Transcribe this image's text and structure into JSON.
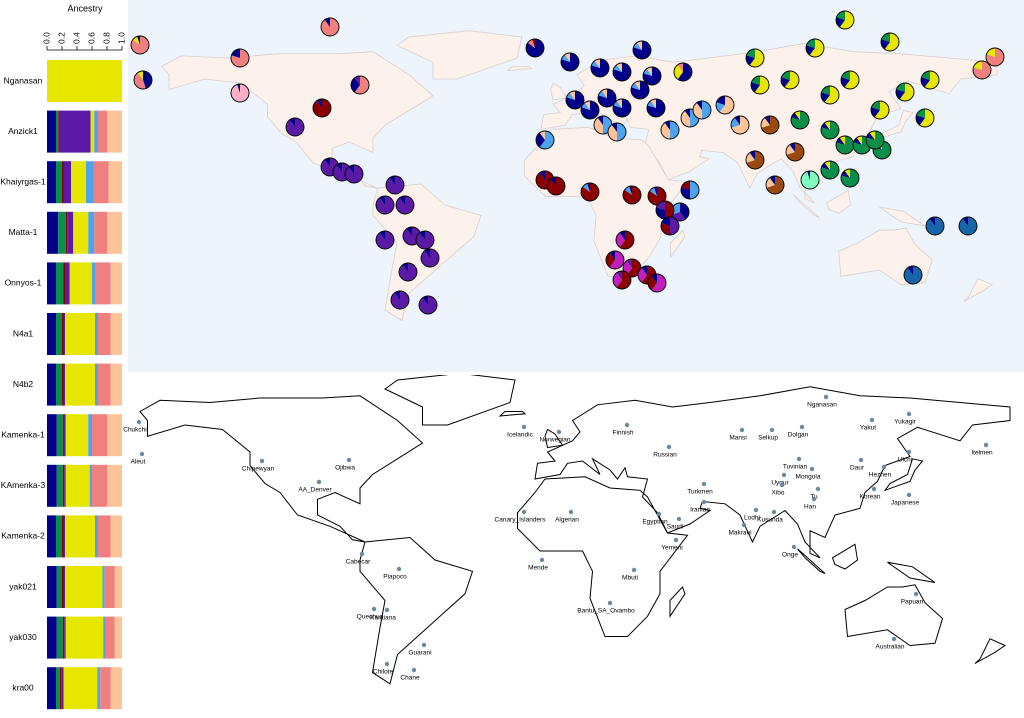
{
  "chart_data": {
    "type": "bar",
    "orientation": "horizontal",
    "stacked": true,
    "x_label": "Ancestry",
    "categories": [
      "Nganasan",
      "Anzick1",
      "Khaiyrgas-1",
      "Matta-1",
      "Onnyos-1",
      "N4a1",
      "N4b2",
      "Kamenka-1",
      "KAmenka-3",
      "Kamenka-2",
      "yak021",
      "yak030",
      "kra00"
    ],
    "xlim": [
      0,
      1
    ],
    "xticks": [
      {
        "value": 0,
        "label": "0.0"
      },
      0.2,
      0.4,
      0.6,
      0.8,
      {
        "value": 1,
        "label": "1.0"
      }
    ],
    "series": [
      {
        "color": "#00008b",
        "values": [
          0,
          0.12,
          0.12,
          0.15,
          0.12,
          0.12,
          0.12,
          0.13,
          0.13,
          0.12,
          0.13,
          0.13,
          0.12
        ]
      },
      {
        "color": "#0a8f4a",
        "values": [
          0,
          0.03,
          0.08,
          0.1,
          0.1,
          0.08,
          0.08,
          0.08,
          0.08,
          0.08,
          0.07,
          0.08,
          0.05
        ]
      },
      {
        "color": "#8b0000",
        "values": [
          0,
          0.01,
          0.02,
          0.02,
          0.02,
          0.02,
          0.02,
          0.01,
          0.02,
          0.02,
          0.02,
          0.02,
          0.02
        ]
      },
      {
        "color": "#5a1aa6",
        "values": [
          0,
          0.42,
          0.1,
          0.08,
          0.06,
          0.02,
          0.02,
          0.03,
          0.02,
          0.02,
          0.02,
          0.02,
          0.03
        ]
      },
      {
        "color": "#e6e600",
        "values": [
          1,
          0.05,
          0.2,
          0.2,
          0.3,
          0.4,
          0.4,
          0.3,
          0.32,
          0.4,
          0.5,
          0.5,
          0.45
        ]
      },
      {
        "color": "#4da3ee",
        "values": [
          0,
          0.05,
          0.1,
          0.08,
          0.05,
          0.04,
          0.04,
          0.05,
          0.03,
          0.04,
          0.03,
          0.03,
          0.04
        ]
      },
      {
        "color": "#f08080",
        "values": [
          0,
          0.12,
          0.2,
          0.17,
          0.2,
          0.17,
          0.17,
          0.2,
          0.2,
          0.17,
          0.13,
          0.12,
          0.14
        ]
      },
      {
        "color": "#ffc39a",
        "values": [
          0,
          0.2,
          0.18,
          0.2,
          0.15,
          0.15,
          0.15,
          0.2,
          0.2,
          0.15,
          0.1,
          0.1,
          0.15
        ]
      }
    ]
  },
  "ancestry_map": {
    "component_colors": [
      "#00008b",
      "#0a8f4a",
      "#8b0000",
      "#5a1aa6",
      "#e6e600",
      "#4da3ee",
      "#f08080",
      "#ffc39a",
      "#9a4a10",
      "#7fffc0",
      "#1565a8",
      "#c020c0",
      "#ffb0c8"
    ],
    "pies": [
      [
        [
          6,
          0.85
        ],
        [
          4,
          0.1
        ],
        [
          0,
          0.05
        ]
      ],
      [
        [
          0,
          0.45
        ],
        [
          6,
          0.45
        ],
        [
          4,
          0.1
        ]
      ],
      [
        [
          6,
          0.9
        ],
        [
          0,
          0.1
        ]
      ],
      [
        [
          6,
          0.8
        ],
        [
          0,
          0.2
        ]
      ],
      [
        [
          12,
          0.95
        ],
        [
          0,
          0.05
        ]
      ],
      [
        [
          2,
          0.9
        ],
        [
          0,
          0.1
        ]
      ],
      [
        [
          6,
          0.6
        ],
        [
          0,
          0.3
        ],
        [
          3,
          0.1
        ]
      ],
      [
        [
          3,
          0.9
        ],
        [
          0,
          0.1
        ]
      ],
      [
        [
          3,
          0.9
        ],
        [
          0,
          0.1
        ]
      ],
      [
        [
          3,
          0.9
        ],
        [
          0,
          0.1
        ]
      ],
      [
        [
          3,
          0.9
        ],
        [
          0,
          0.1
        ]
      ],
      [
        [
          3,
          0.9
        ],
        [
          0,
          0.1
        ]
      ],
      [
        [
          3,
          0.9
        ],
        [
          0,
          0.1
        ]
      ],
      [
        [
          3,
          0.9
        ],
        [
          0,
          0.1
        ]
      ],
      [
        [
          3,
          0.9
        ],
        [
          0,
          0.1
        ]
      ],
      [
        [
          3,
          0.9
        ],
        [
          0,
          0.1
        ]
      ],
      [
        [
          3,
          0.9
        ],
        [
          0,
          0.1
        ]
      ],
      [
        [
          3,
          0.9
        ],
        [
          0,
          0.1
        ]
      ],
      [
        [
          3,
          0.9
        ],
        [
          0,
          0.1
        ]
      ],
      [
        [
          3,
          0.9
        ],
        [
          0,
          0.1
        ]
      ],
      [
        [
          3,
          0.9
        ],
        [
          0,
          0.1
        ]
      ],
      [
        [
          0,
          0.85
        ],
        [
          6,
          0.1
        ],
        [
          2,
          0.05
        ]
      ],
      [
        [
          0,
          0.8
        ],
        [
          5,
          0.1
        ],
        [
          7,
          0.1
        ]
      ],
      [
        [
          0,
          0.8
        ],
        [
          5,
          0.1
        ],
        [
          7,
          0.1
        ]
      ],
      [
        [
          0,
          0.8
        ],
        [
          5,
          0.1
        ],
        [
          7,
          0.1
        ]
      ],
      [
        [
          0,
          0.8
        ],
        [
          5,
          0.1
        ],
        [
          7,
          0.1
        ]
      ],
      [
        [
          0,
          0.8
        ],
        [
          5,
          0.1
        ],
        [
          7,
          0.1
        ]
      ],
      [
        [
          0,
          0.8
        ],
        [
          5,
          0.1
        ],
        [
          7,
          0.1
        ]
      ],
      [
        [
          0,
          0.8
        ],
        [
          5,
          0.1
        ],
        [
          7,
          0.1
        ]
      ],
      [
        [
          0,
          0.8
        ],
        [
          5,
          0.1
        ],
        [
          7,
          0.1
        ]
      ],
      [
        [
          0,
          0.8
        ],
        [
          5,
          0.1
        ],
        [
          7,
          0.1
        ]
      ],
      [
        [
          0,
          0.8
        ],
        [
          5,
          0.1
        ],
        [
          7,
          0.1
        ]
      ],
      [
        [
          0,
          0.8
        ],
        [
          5,
          0.1
        ],
        [
          7,
          0.1
        ]
      ],
      [
        [
          0,
          0.6
        ],
        [
          4,
          0.3
        ],
        [
          6,
          0.1
        ]
      ],
      [
        [
          5,
          0.6
        ],
        [
          0,
          0.3
        ],
        [
          7,
          0.1
        ]
      ],
      [
        [
          5,
          0.5
        ],
        [
          7,
          0.4
        ],
        [
          0,
          0.1
        ]
      ],
      [
        [
          5,
          0.5
        ],
        [
          7,
          0.4
        ],
        [
          0,
          0.1
        ]
      ],
      [
        [
          5,
          0.5
        ],
        [
          7,
          0.4
        ],
        [
          0,
          0.1
        ]
      ],
      [
        [
          5,
          0.5
        ],
        [
          7,
          0.4
        ],
        [
          0,
          0.1
        ]
      ],
      [
        [
          5,
          0.5
        ],
        [
          7,
          0.4
        ],
        [
          0,
          0.1
        ]
      ],
      [
        [
          2,
          0.9
        ],
        [
          0,
          0.1
        ]
      ],
      [
        [
          2,
          0.9
        ],
        [
          0,
          0.1
        ]
      ],
      [
        [
          2,
          0.85
        ],
        [
          5,
          0.1
        ],
        [
          0,
          0.05
        ]
      ],
      [
        [
          2,
          0.85
        ],
        [
          5,
          0.1
        ],
        [
          0,
          0.05
        ]
      ],
      [
        [
          2,
          0.85
        ],
        [
          5,
          0.1
        ],
        [
          0,
          0.05
        ]
      ],
      [
        [
          5,
          0.5
        ],
        [
          0,
          0.3
        ],
        [
          2,
          0.2
        ]
      ],
      [
        [
          0,
          0.4
        ],
        [
          3,
          0.3
        ],
        [
          5,
          0.3
        ]
      ],
      [
        [
          2,
          0.5
        ],
        [
          0,
          0.3
        ],
        [
          3,
          0.2
        ]
      ],
      [
        [
          3,
          0.5
        ],
        [
          2,
          0.3
        ],
        [
          0,
          0.2
        ]
      ],
      [
        [
          2,
          0.6
        ],
        [
          11,
          0.3
        ],
        [
          0,
          0.1
        ]
      ],
      [
        [
          11,
          0.6
        ],
        [
          2,
          0.3
        ],
        [
          0,
          0.1
        ]
      ],
      [
        [
          2,
          0.6
        ],
        [
          11,
          0.3
        ],
        [
          3,
          0.1
        ]
      ],
      [
        [
          2,
          0.6
        ],
        [
          11,
          0.3
        ],
        [
          0,
          0.1
        ]
      ],
      [
        [
          11,
          0.6
        ],
        [
          2,
          0.3
        ],
        [
          0,
          0.1
        ]
      ],
      [
        [
          2,
          0.6
        ],
        [
          11,
          0.3
        ],
        [
          3,
          0.1
        ]
      ],
      [
        [
          7,
          0.6
        ],
        [
          5,
          0.2
        ],
        [
          0,
          0.2
        ]
      ],
      [
        [
          7,
          0.7
        ],
        [
          5,
          0.2
        ],
        [
          0,
          0.1
        ]
      ],
      [
        [
          8,
          0.7
        ],
        [
          7,
          0.2
        ],
        [
          0,
          0.1
        ]
      ],
      [
        [
          8,
          0.7
        ],
        [
          7,
          0.2
        ],
        [
          0,
          0.1
        ]
      ],
      [
        [
          8,
          0.7
        ],
        [
          7,
          0.2
        ],
        [
          0,
          0.1
        ]
      ],
      [
        [
          8,
          0.7
        ],
        [
          7,
          0.2
        ],
        [
          0,
          0.1
        ]
      ],
      [
        [
          1,
          0.8
        ],
        [
          0,
          0.1
        ],
        [
          4,
          0.1
        ]
      ],
      [
        [
          1,
          0.8
        ],
        [
          0,
          0.1
        ],
        [
          4,
          0.1
        ]
      ],
      [
        [
          1,
          0.8
        ],
        [
          0,
          0.1
        ],
        [
          4,
          0.1
        ]
      ],
      [
        [
          1,
          0.8
        ],
        [
          0,
          0.1
        ],
        [
          4,
          0.1
        ]
      ],
      [
        [
          1,
          0.8
        ],
        [
          0,
          0.1
        ],
        [
          4,
          0.1
        ]
      ],
      [
        [
          1,
          0.8
        ],
        [
          0,
          0.1
        ],
        [
          4,
          0.1
        ]
      ],
      [
        [
          1,
          0.8
        ],
        [
          0,
          0.1
        ],
        [
          4,
          0.1
        ]
      ],
      [
        [
          1,
          0.8
        ],
        [
          0,
          0.1
        ],
        [
          4,
          0.1
        ]
      ],
      [
        [
          4,
          0.6
        ],
        [
          0,
          0.2
        ],
        [
          1,
          0.2
        ]
      ],
      [
        [
          4,
          0.6
        ],
        [
          0,
          0.2
        ],
        [
          1,
          0.2
        ]
      ],
      [
        [
          4,
          0.6
        ],
        [
          0,
          0.2
        ],
        [
          1,
          0.2
        ]
      ],
      [
        [
          4,
          0.6
        ],
        [
          0,
          0.2
        ],
        [
          1,
          0.2
        ]
      ],
      [
        [
          4,
          0.6
        ],
        [
          0,
          0.2
        ],
        [
          1,
          0.2
        ]
      ],
      [
        [
          4,
          0.6
        ],
        [
          0,
          0.2
        ],
        [
          1,
          0.2
        ]
      ],
      [
        [
          4,
          0.6
        ],
        [
          0,
          0.2
        ],
        [
          1,
          0.2
        ]
      ],
      [
        [
          4,
          0.6
        ],
        [
          0,
          0.2
        ],
        [
          1,
          0.2
        ]
      ],
      [
        [
          4,
          0.6
        ],
        [
          0,
          0.2
        ],
        [
          1,
          0.2
        ]
      ],
      [
        [
          4,
          0.6
        ],
        [
          0,
          0.2
        ],
        [
          1,
          0.2
        ]
      ],
      [
        [
          4,
          0.6
        ],
        [
          0,
          0.2
        ],
        [
          1,
          0.2
        ]
      ],
      [
        [
          4,
          0.6
        ],
        [
          0,
          0.2
        ],
        [
          1,
          0.2
        ]
      ],
      [
        [
          6,
          0.8
        ],
        [
          4,
          0.2
        ]
      ],
      [
        [
          6,
          0.8
        ],
        [
          4,
          0.2
        ]
      ],
      [
        [
          9,
          0.95
        ],
        [
          0,
          0.05
        ]
      ],
      [
        [
          10,
          0.9
        ],
        [
          0,
          0.1
        ]
      ],
      [
        [
          10,
          0.9
        ],
        [
          0,
          0.1
        ]
      ],
      [
        [
          10,
          0.9
        ],
        [
          0,
          0.1
        ]
      ]
    ]
  },
  "population_labels": [
    "Chukchi",
    "Aleut",
    "Chipewyan",
    "Ojibwa",
    "AA_Denver",
    "Icelandic",
    "Mansi",
    "Selkup",
    "Dolgan",
    "Nganasan",
    "Yakut",
    "Yukagir",
    "Itelmen",
    "Tuvinian",
    "Mongola",
    "Daur",
    "Ulchi",
    "Uygur",
    "Xibo",
    "Tu",
    "Han",
    "Hezhen",
    "Korean",
    "Japanese",
    "Kusunda",
    "Lodhi",
    "Makrani",
    "Saudi",
    "Egyptian",
    "Algerian",
    "Canary_Islanders",
    "Yemeni",
    "Mende",
    "Finnish",
    "Norwegian",
    "Russian",
    "Turkmen",
    "Iranian",
    "Papuan",
    "Australian",
    "Cabecar",
    "Piapoco",
    "Karitiana",
    "Quechua",
    "Guarani",
    "Chilote",
    "Chane",
    "Onge",
    "Bantu_SA_Ovambo",
    "Mbuti"
  ]
}
